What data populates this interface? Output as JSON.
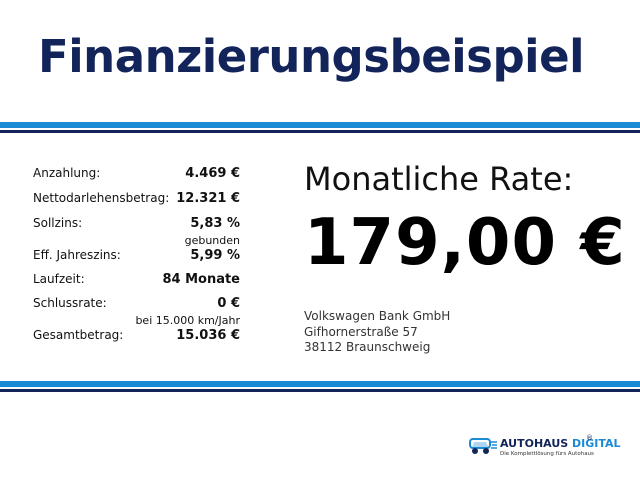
{
  "header": {
    "title": "Finanzierungsbeispiel"
  },
  "details": [
    {
      "label": "Anzahlung:",
      "value": "4.469 €",
      "sub": ""
    },
    {
      "label": "Nettodarlehensbetrag:",
      "value": "12.321 €",
      "sub": ""
    },
    {
      "label": "Sollzins:",
      "value": "5,83 %",
      "sub": "gebunden"
    },
    {
      "label": "Eff. Jahreszins:",
      "value": "5,99 %",
      "sub": ""
    },
    {
      "label": "Laufzeit:",
      "value": "84 Monate",
      "sub": ""
    },
    {
      "label": "Schlussrate:",
      "value": "0 €",
      "sub": "bei 15.000 km/Jahr"
    },
    {
      "label": "Gesamtbetrag:",
      "value": "15.036 €",
      "sub": ""
    }
  ],
  "rate": {
    "label": "Monatliche Rate:",
    "value": "179,00 €"
  },
  "bank": {
    "name": "Volkswagen Bank GmbH",
    "street": "Gifhornerstraße 57",
    "city": "38112 Braunschweig"
  },
  "logo": {
    "brand_part1": "AUTOHAUS ",
    "brand_part2": "DIGITAL",
    "registered": "®",
    "tagline": "Die Komplettlösung fürs Autohaus",
    "icon": "car-icon"
  },
  "colors": {
    "navy": "#13245a",
    "blue": "#1a8ad4"
  }
}
